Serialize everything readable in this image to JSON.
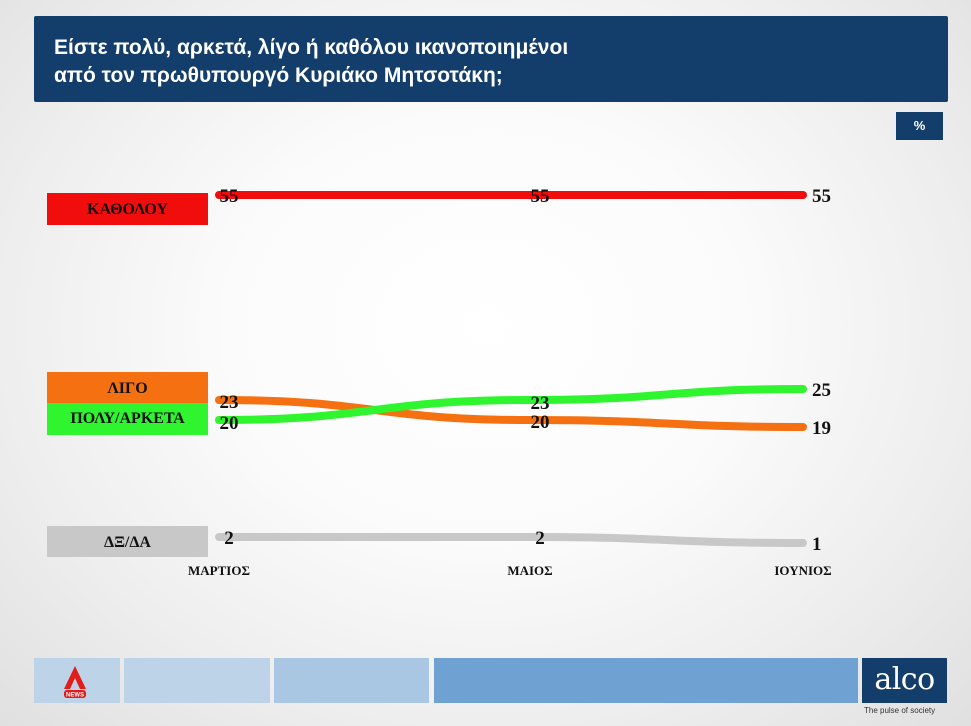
{
  "header": {
    "title_line1": "Είστε πολύ, αρκετά, λίγο ή καθόλου ικανοποιημένοι",
    "title_line2": "από τον πρωθυπουργό Κυριάκο Μητσοτάκη;"
  },
  "unit_badge": "%",
  "colors": {
    "header_bg": "#133d6b",
    "katholou": "#f20d0d",
    "ligo": "#f57010",
    "poly_arketa": "#2ef52e",
    "dxda": "#c8c8c8"
  },
  "chart_data": {
    "type": "line",
    "categories": [
      "ΜΑΡΤΙΟΣ",
      "ΜΑΙΟΣ",
      "ΙΟΥΝΙΟΣ"
    ],
    "series": [
      {
        "name": "ΚΑΘΟΛΟΥ",
        "values": [
          55,
          55,
          55
        ],
        "color": "#f20d0d"
      },
      {
        "name": "ΛΙΓΟ",
        "values": [
          23,
          20,
          19
        ],
        "color": "#f57010"
      },
      {
        "name": "ΠΟΛΥ/ΑΡΚΕΤΑ",
        "values": [
          20,
          23,
          25
        ],
        "color": "#2ef52e"
      },
      {
        "name": "ΔΞ/ΔΑ",
        "values": [
          2,
          2,
          1
        ],
        "color": "#c8c8c8"
      }
    ],
    "unit": "%",
    "legend_position": "left",
    "grid": false
  },
  "footer": {
    "alpha_logo_text": "NEWS",
    "brand": "alco",
    "tagline": "The pulse of society"
  }
}
